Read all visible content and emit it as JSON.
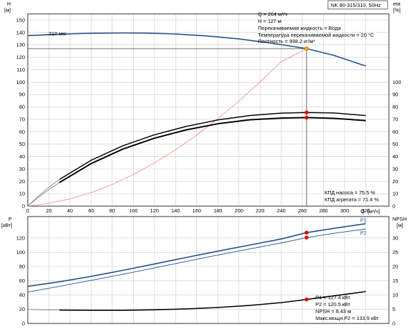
{
  "chart_data": [
    {
      "type": "line",
      "panel": "top",
      "title": "NK 80-315/310, 50Hz",
      "xlabel": "Q",
      "xunit": "[м³/ч]",
      "x_ticks": [
        0,
        20,
        40,
        60,
        80,
        100,
        120,
        140,
        160,
        180,
        200,
        220,
        240,
        260,
        280,
        300,
        320
      ],
      "xlim": [
        0,
        342
      ],
      "left_axis": {
        "label": "H",
        "unit": "[м]",
        "ylim": [
          0,
          155
        ],
        "ticks": [
          0,
          10,
          20,
          30,
          40,
          50,
          60,
          70,
          80,
          90,
          100,
          110,
          120,
          130,
          140,
          150
        ]
      },
      "right_axis": {
        "label": "eta",
        "unit": "[%]",
        "ylim": [
          0,
          155
        ],
        "ticks": [
          0,
          10,
          20,
          30,
          40,
          50,
          60,
          70,
          80,
          90,
          100
        ]
      },
      "impeller_label": "310 мм",
      "series": [
        {
          "key": "head",
          "axis": "left",
          "color": "#1f4e8c",
          "x": [
            0,
            30,
            60,
            90,
            110,
            140,
            170,
            200,
            230,
            264,
            290,
            320
          ],
          "y": [
            137.5,
            138.6,
            139.4,
            139.6,
            139.5,
            138.8,
            137.2,
            134.8,
            131.5,
            127.0,
            121.5,
            113.0
          ]
        },
        {
          "key": "system-curve",
          "axis": "left",
          "color": "#f08080",
          "x": [
            0,
            20,
            40,
            60,
            80,
            100,
            120,
            140,
            160,
            180,
            200,
            220,
            240,
            264
          ],
          "y": [
            0,
            2.3,
            5.8,
            10.9,
            17.5,
            25.5,
            34.8,
            45.5,
            57.3,
            70.5,
            84.8,
            100.3,
            116.4,
            127.0
          ]
        },
        {
          "key": "eta-pump",
          "axis": "right",
          "color": "#000000",
          "x": [
            30,
            60,
            90,
            120,
            150,
            180,
            210,
            240,
            264,
            290,
            320
          ],
          "y": [
            21.5,
            37.0,
            48.6,
            57.5,
            64.3,
            69.5,
            73.0,
            75.0,
            75.5,
            75.1,
            73.0
          ]
        },
        {
          "key": "eta-unit",
          "axis": "right",
          "color": "#000000",
          "x": [
            30,
            60,
            90,
            120,
            150,
            180,
            210,
            240,
            264,
            290,
            320
          ],
          "y": [
            19.0,
            34.3,
            46.0,
            54.8,
            61.5,
            66.4,
            69.6,
            71.0,
            71.4,
            70.8,
            69.0
          ]
        },
        {
          "key": "eta-pump-ext",
          "axis": "right",
          "color": "#7a7a7a",
          "x": [
            0,
            10,
            20,
            30
          ],
          "y": [
            0,
            8.0,
            15.2,
            21.5
          ]
        },
        {
          "key": "eta-unit-ext",
          "axis": "right",
          "color": "#7a7a7a",
          "x": [
            0,
            10,
            20,
            30
          ],
          "y": [
            0,
            7.0,
            13.4,
            19.0
          ]
        }
      ],
      "duty_point": {
        "q": 264,
        "h": 127,
        "eta_pump": 75.5,
        "eta_unit": 71.4,
        "color": "#f0a020"
      },
      "info_box": [
        "Q = 264 м³/ч",
        "H = 127 м",
        "Перекачиваемая жидкость = Вода",
        "Температура перекачиваемой жидкости = 20 °C",
        "Плотность = 998.2 кг/м³"
      ],
      "eta_labels": [
        "КПД насоса = 75.5 %",
        "КПД агрегата = 71.4 %"
      ]
    },
    {
      "type": "line",
      "panel": "bottom",
      "xlim": [
        0,
        342
      ],
      "left_axis": {
        "label": "P",
        "unit": "[кВт]",
        "ylim": [
          0,
          150
        ],
        "ticks": [
          0,
          20,
          40,
          60,
          80,
          100,
          120
        ]
      },
      "right_axis": {
        "label": "NPSH",
        "unit": "[м]",
        "ylim": [
          0,
          37.5
        ],
        "ticks": [
          0,
          5,
          10,
          15,
          20,
          25,
          30
        ]
      },
      "series": [
        {
          "key": "P1",
          "name": "P1",
          "axis": "left",
          "color": "#1f4e8c",
          "x": [
            0,
            30,
            60,
            90,
            120,
            150,
            180,
            210,
            240,
            264,
            290,
            320
          ],
          "y": [
            52.0,
            58.5,
            66.0,
            74.5,
            83.5,
            92.5,
            101.5,
            110.0,
            118.5,
            127.4,
            133.5,
            140.0
          ]
        },
        {
          "key": "P2",
          "name": "P2",
          "axis": "left",
          "color": "#1f4e8c",
          "x": [
            0,
            30,
            60,
            90,
            120,
            150,
            180,
            210,
            240,
            264,
            290,
            320
          ],
          "y": [
            44.0,
            52.0,
            60.5,
            69.0,
            78.0,
            87.0,
            96.0,
            104.5,
            113.0,
            120.5,
            126.5,
            132.5
          ]
        },
        {
          "key": "npsh",
          "axis": "right",
          "color": "#000000",
          "x": [
            30,
            60,
            90,
            120,
            150,
            180,
            210,
            240,
            264,
            290,
            320
          ],
          "y": [
            4.7,
            4.6,
            4.6,
            4.8,
            5.1,
            5.6,
            6.3,
            7.3,
            8.43,
            9.7,
            11.2
          ]
        },
        {
          "key": "npsh-ext",
          "axis": "right",
          "color": "#7a7a7a",
          "x": [
            0,
            15,
            30
          ],
          "y": [
            4.9,
            4.8,
            4.7
          ]
        }
      ],
      "duty_point": {
        "q": 264,
        "p1": 127.4,
        "p2": 120.5,
        "npsh": 8.43
      },
      "info_box": [
        "P1 = 127.4 кВт",
        "P2 = 120.5 кВт",
        "NPSH = 8.43 м",
        "Макс.мощн.P2 = 133.9 кВт"
      ]
    }
  ]
}
